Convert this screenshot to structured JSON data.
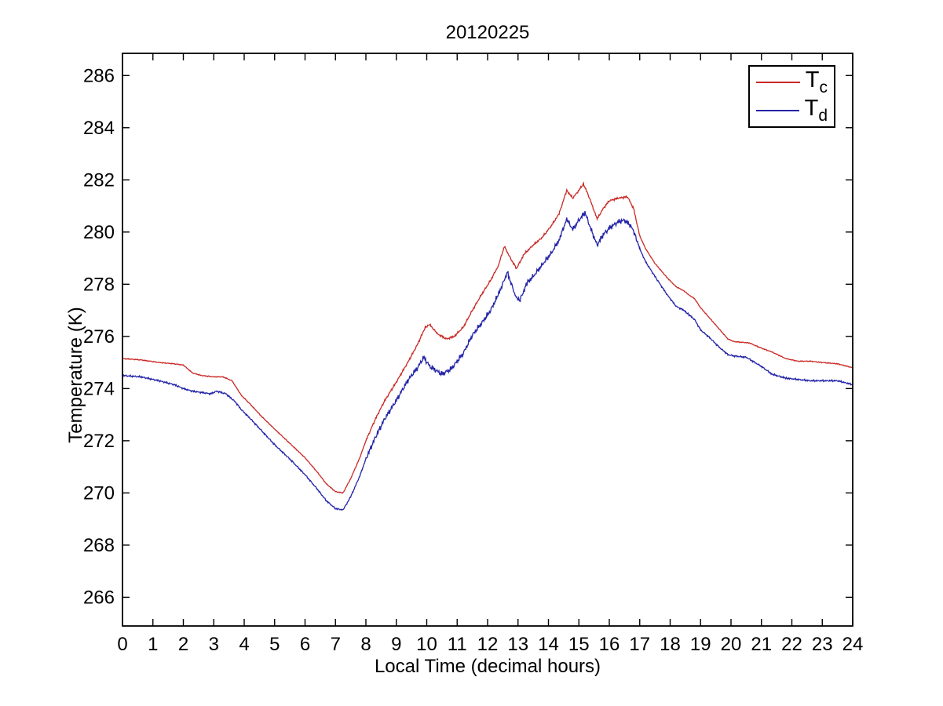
{
  "title": "20120225",
  "chart_data": {
    "type": "line",
    "title": "20120225",
    "xlabel": "Local Time (decimal hours)",
    "ylabel": "Temperature (K)",
    "xlim": [
      0,
      24
    ],
    "ylim": [
      264.9,
      286.85
    ],
    "xticks": [
      0,
      1,
      2,
      3,
      4,
      5,
      6,
      7,
      8,
      9,
      10,
      11,
      12,
      13,
      14,
      15,
      16,
      17,
      18,
      19,
      20,
      21,
      22,
      23,
      24
    ],
    "yticks": [
      266,
      268,
      270,
      272,
      274,
      276,
      278,
      280,
      282,
      284,
      286
    ],
    "grid": false,
    "legend_position": "top-right",
    "series": [
      {
        "name": "Tc",
        "label_main": "T",
        "label_sub": "c",
        "color": "#c92a26",
        "noise": {
          "base": 0.018,
          "mid": 0.045,
          "mid_start": 8,
          "mid_end": 17,
          "seed": 3
        },
        "points": [
          [
            0,
            275.15
          ],
          [
            0.6,
            275.1
          ],
          [
            1.2,
            275.0
          ],
          [
            1.7,
            274.95
          ],
          [
            2.0,
            274.9
          ],
          [
            2.3,
            274.6
          ],
          [
            2.6,
            274.5
          ],
          [
            3.0,
            274.45
          ],
          [
            3.3,
            274.45
          ],
          [
            3.6,
            274.3
          ],
          [
            3.9,
            273.75
          ],
          [
            4.2,
            273.4
          ],
          [
            4.6,
            272.9
          ],
          [
            5.0,
            272.45
          ],
          [
            5.5,
            271.9
          ],
          [
            6.0,
            271.35
          ],
          [
            6.4,
            270.8
          ],
          [
            6.7,
            270.35
          ],
          [
            7.0,
            270.05
          ],
          [
            7.25,
            270.0
          ],
          [
            7.5,
            270.55
          ],
          [
            7.8,
            271.35
          ],
          [
            8.0,
            272.0
          ],
          [
            8.3,
            272.8
          ],
          [
            8.6,
            273.5
          ],
          [
            9.0,
            274.25
          ],
          [
            9.4,
            275.05
          ],
          [
            9.7,
            275.7
          ],
          [
            9.95,
            276.35
          ],
          [
            10.1,
            276.45
          ],
          [
            10.35,
            276.1
          ],
          [
            10.65,
            275.9
          ],
          [
            10.9,
            276.0
          ],
          [
            11.2,
            276.35
          ],
          [
            11.5,
            277.0
          ],
          [
            11.8,
            277.6
          ],
          [
            12.1,
            278.15
          ],
          [
            12.35,
            278.7
          ],
          [
            12.55,
            279.45
          ],
          [
            12.75,
            279.0
          ],
          [
            12.95,
            278.6
          ],
          [
            13.2,
            279.15
          ],
          [
            13.5,
            279.5
          ],
          [
            13.8,
            279.8
          ],
          [
            14.1,
            280.25
          ],
          [
            14.35,
            280.7
          ],
          [
            14.6,
            281.6
          ],
          [
            14.8,
            281.3
          ],
          [
            15.0,
            281.6
          ],
          [
            15.15,
            281.85
          ],
          [
            15.35,
            281.3
          ],
          [
            15.6,
            280.5
          ],
          [
            15.8,
            280.9
          ],
          [
            16.0,
            281.2
          ],
          [
            16.3,
            281.3
          ],
          [
            16.6,
            281.35
          ],
          [
            16.8,
            280.9
          ],
          [
            17.0,
            279.85
          ],
          [
            17.2,
            279.35
          ],
          [
            17.5,
            278.8
          ],
          [
            17.9,
            278.25
          ],
          [
            18.2,
            277.9
          ],
          [
            18.45,
            277.75
          ],
          [
            18.6,
            277.6
          ],
          [
            18.8,
            277.45
          ],
          [
            19.0,
            277.1
          ],
          [
            19.3,
            276.7
          ],
          [
            19.6,
            276.3
          ],
          [
            19.9,
            275.9
          ],
          [
            20.1,
            275.8
          ],
          [
            20.6,
            275.75
          ],
          [
            21.0,
            275.55
          ],
          [
            21.35,
            275.4
          ],
          [
            21.8,
            275.15
          ],
          [
            22.2,
            275.05
          ],
          [
            22.6,
            275.05
          ],
          [
            23.0,
            275.0
          ],
          [
            23.5,
            274.95
          ],
          [
            24,
            274.8
          ]
        ]
      },
      {
        "name": "Td",
        "label_main": "T",
        "label_sub": "d",
        "color": "#2424a8",
        "noise": {
          "base": 0.035,
          "mid": 0.11,
          "mid_start": 8,
          "mid_end": 17,
          "seed": 7
        },
        "points": [
          [
            0,
            274.5
          ],
          [
            0.6,
            274.45
          ],
          [
            1.2,
            274.3
          ],
          [
            1.7,
            274.15
          ],
          [
            2.0,
            274.0
          ],
          [
            2.3,
            273.9
          ],
          [
            2.6,
            273.85
          ],
          [
            2.9,
            273.8
          ],
          [
            3.1,
            273.9
          ],
          [
            3.4,
            273.8
          ],
          [
            3.7,
            273.5
          ],
          [
            3.9,
            273.2
          ],
          [
            4.2,
            272.85
          ],
          [
            4.6,
            272.35
          ],
          [
            5.0,
            271.85
          ],
          [
            5.5,
            271.3
          ],
          [
            6.0,
            270.7
          ],
          [
            6.4,
            270.15
          ],
          [
            6.7,
            269.7
          ],
          [
            7.0,
            269.4
          ],
          [
            7.25,
            269.35
          ],
          [
            7.5,
            269.85
          ],
          [
            7.8,
            270.65
          ],
          [
            8.0,
            271.3
          ],
          [
            8.3,
            272.1
          ],
          [
            8.6,
            272.8
          ],
          [
            9.0,
            273.55
          ],
          [
            9.4,
            274.35
          ],
          [
            9.7,
            274.8
          ],
          [
            9.9,
            275.2
          ],
          [
            10.1,
            274.85
          ],
          [
            10.5,
            274.55
          ],
          [
            10.8,
            274.75
          ],
          [
            11.2,
            275.35
          ],
          [
            11.5,
            276.05
          ],
          [
            11.8,
            276.5
          ],
          [
            12.1,
            277.0
          ],
          [
            12.35,
            277.6
          ],
          [
            12.65,
            278.45
          ],
          [
            12.9,
            277.6
          ],
          [
            13.05,
            277.35
          ],
          [
            13.3,
            278.05
          ],
          [
            13.5,
            278.3
          ],
          [
            13.8,
            278.75
          ],
          [
            14.1,
            279.2
          ],
          [
            14.35,
            279.7
          ],
          [
            14.6,
            280.5
          ],
          [
            14.8,
            280.1
          ],
          [
            15.0,
            280.45
          ],
          [
            15.2,
            280.75
          ],
          [
            15.4,
            280.1
          ],
          [
            15.6,
            279.5
          ],
          [
            15.8,
            279.9
          ],
          [
            16.0,
            280.15
          ],
          [
            16.3,
            280.4
          ],
          [
            16.5,
            280.45
          ],
          [
            16.7,
            280.25
          ],
          [
            16.85,
            279.9
          ],
          [
            17.0,
            279.35
          ],
          [
            17.2,
            278.85
          ],
          [
            17.5,
            278.3
          ],
          [
            17.9,
            277.6
          ],
          [
            18.2,
            277.15
          ],
          [
            18.45,
            277.0
          ],
          [
            18.6,
            276.85
          ],
          [
            18.8,
            276.65
          ],
          [
            19.0,
            276.25
          ],
          [
            19.3,
            275.95
          ],
          [
            19.6,
            275.6
          ],
          [
            19.9,
            275.3
          ],
          [
            20.1,
            275.25
          ],
          [
            20.5,
            275.2
          ],
          [
            21.0,
            274.85
          ],
          [
            21.35,
            274.55
          ],
          [
            21.8,
            274.4
          ],
          [
            22.2,
            274.35
          ],
          [
            22.6,
            274.3
          ],
          [
            23.0,
            274.3
          ],
          [
            23.5,
            274.3
          ],
          [
            24,
            274.15
          ]
        ]
      }
    ]
  }
}
